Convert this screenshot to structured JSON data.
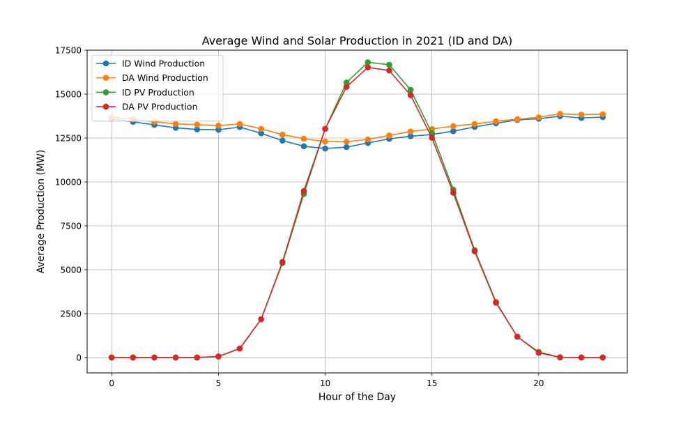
{
  "chart_data": {
    "type": "line",
    "title": "Average Wind and Solar Production in 2021 (ID and DA)",
    "xlabel": "Hour of the Day",
    "ylabel": "Average Production (MW)",
    "xlim": [
      -1.15,
      24.15
    ],
    "ylim": [
      -875,
      17500
    ],
    "xticks": [
      0,
      5,
      10,
      15,
      20
    ],
    "yticks": [
      0,
      2500,
      5000,
      7500,
      10000,
      12500,
      15000,
      17500
    ],
    "grid": true,
    "legend_position": "top-left",
    "x": [
      0,
      1,
      2,
      3,
      4,
      5,
      6,
      7,
      8,
      9,
      10,
      11,
      12,
      13,
      14,
      15,
      16,
      17,
      18,
      19,
      20,
      21,
      22,
      23
    ],
    "series": [
      {
        "name": "ID Wind Production",
        "color": "#1f77b4",
        "values": [
          13600,
          13420,
          13250,
          13080,
          12990,
          12970,
          13120,
          12770,
          12350,
          12030,
          11900,
          11980,
          12220,
          12450,
          12600,
          12700,
          12890,
          13130,
          13340,
          13530,
          13600,
          13740,
          13640,
          13690
        ]
      },
      {
        "name": "DA Wind Production",
        "color": "#ff7f0e",
        "values": [
          13680,
          13570,
          13420,
          13310,
          13260,
          13200,
          13300,
          13020,
          12690,
          12460,
          12300,
          12290,
          12420,
          12640,
          12870,
          13010,
          13170,
          13300,
          13450,
          13570,
          13680,
          13870,
          13830,
          13850
        ]
      },
      {
        "name": "ID PV Production",
        "color": "#2ca02c",
        "values": [
          0,
          0,
          0,
          0,
          0,
          60,
          500,
          2180,
          5380,
          9310,
          13020,
          15660,
          16810,
          16670,
          15240,
          12780,
          9560,
          6120,
          3160,
          1180,
          320,
          10,
          0,
          0
        ]
      },
      {
        "name": "DA PV Production",
        "color": "#d62728",
        "values": [
          0,
          0,
          0,
          0,
          0,
          60,
          520,
          2180,
          5440,
          9480,
          13020,
          15410,
          16520,
          16340,
          14940,
          12510,
          9380,
          6050,
          3120,
          1190,
          270,
          10,
          0,
          0
        ]
      }
    ]
  }
}
